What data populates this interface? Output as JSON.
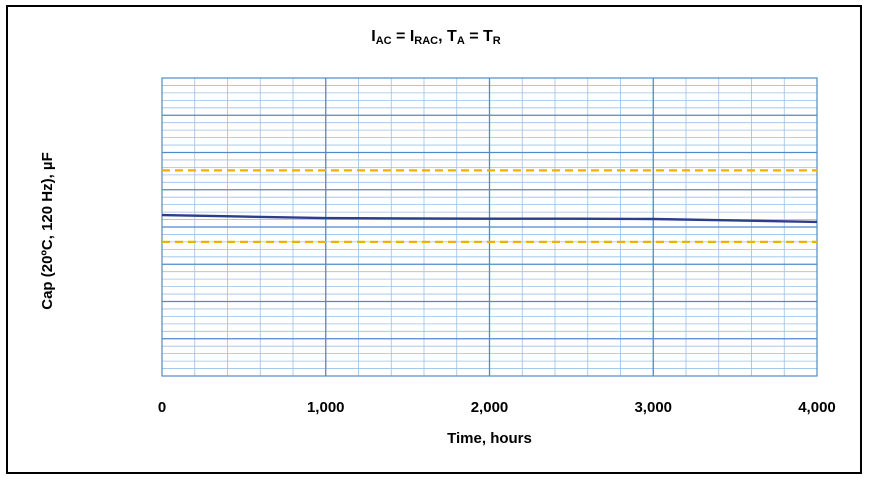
{
  "chart_data": {
    "type": "line",
    "title_parts": {
      "i1": "I",
      "i1_sub": "AC",
      "eq1": " = ",
      "i2": "I",
      "i2_sub": "RAC",
      "sep": ", ",
      "t1": "T",
      "t1_sub": "A",
      "eq2": " = ",
      "t2": "T",
      "t2_sub": "R"
    },
    "xlabel": "Time, hours",
    "ylabel": "Cap (20ºC, 120 Hz), µF",
    "xlim": [
      0,
      4000
    ],
    "ylim": [
      0,
      10
    ],
    "x_ticks": [
      0,
      1000,
      2000,
      3000,
      4000
    ],
    "x_tick_labels": [
      "0",
      "1,000",
      "2,000",
      "3,000",
      "4,000"
    ],
    "y_tick_labels_shown": false,
    "grid": true,
    "series": [
      {
        "style": "solid",
        "color": "#2b3e8c",
        "x": [
          0,
          500,
          1000,
          1500,
          2000,
          2500,
          3000,
          3500,
          4000
        ],
        "y": [
          5.4,
          5.35,
          5.3,
          5.29,
          5.28,
          5.28,
          5.27,
          5.22,
          5.17
        ]
      },
      {
        "style": "dashed",
        "color": "#f0b000",
        "x": [
          0,
          4000
        ],
        "y": [
          6.9,
          6.9
        ]
      },
      {
        "style": "dashed",
        "color": "#f0b000",
        "x": [
          0,
          4000
        ],
        "y": [
          4.5,
          4.5
        ]
      }
    ]
  }
}
